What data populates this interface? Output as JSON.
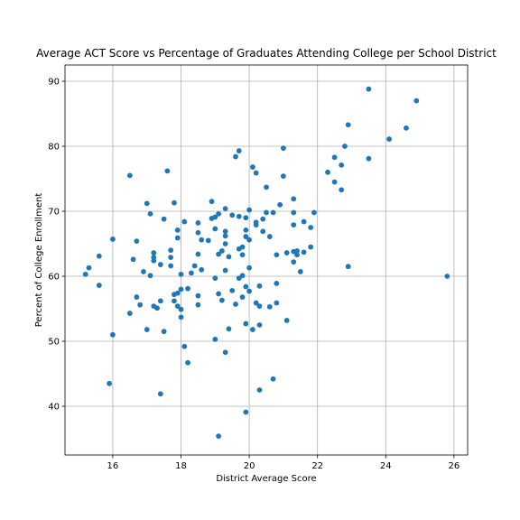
{
  "chart_data": {
    "type": "scatter",
    "title": "Average ACT Score vs Percentage of Graduates Attending College per School District",
    "xlabel": "District Average Score",
    "ylabel": "Percent of College Enrollment",
    "xlim": [
      14.6,
      26.4
    ],
    "ylim": [
      32.5,
      92.5
    ],
    "xticks": [
      16,
      18,
      20,
      22,
      24,
      26
    ],
    "yticks": [
      40,
      50,
      60,
      70,
      80,
      90
    ],
    "grid": true,
    "color": "#1f77b4",
    "points": [
      [
        15.2,
        60.3
      ],
      [
        15.3,
        61.3
      ],
      [
        15.6,
        63.1
      ],
      [
        15.6,
        58.6
      ],
      [
        15.9,
        43.5
      ],
      [
        16.0,
        65.7
      ],
      [
        16.0,
        51.0
      ],
      [
        16.5,
        54.3
      ],
      [
        16.5,
        75.5
      ],
      [
        16.6,
        62.6
      ],
      [
        16.7,
        65.4
      ],
      [
        16.7,
        56.8
      ],
      [
        16.8,
        55.6
      ],
      [
        16.9,
        60.7
      ],
      [
        17.0,
        71.2
      ],
      [
        17.0,
        51.8
      ],
      [
        17.1,
        69.6
      ],
      [
        17.1,
        60.1
      ],
      [
        17.2,
        62.4
      ],
      [
        17.2,
        63.6
      ],
      [
        17.2,
        62.9
      ],
      [
        17.2,
        55.4
      ],
      [
        17.3,
        55.1
      ],
      [
        17.4,
        41.9
      ],
      [
        17.4,
        61.8
      ],
      [
        17.4,
        56.2
      ],
      [
        17.5,
        51.5
      ],
      [
        17.5,
        68.8
      ],
      [
        17.6,
        76.2
      ],
      [
        17.7,
        64.0
      ],
      [
        17.7,
        62.9
      ],
      [
        17.7,
        61.6
      ],
      [
        17.8,
        71.3
      ],
      [
        17.8,
        56.2
      ],
      [
        17.8,
        57.2
      ],
      [
        17.9,
        67.1
      ],
      [
        17.9,
        65.9
      ],
      [
        17.9,
        57.4
      ],
      [
        17.9,
        55.4
      ],
      [
        18.0,
        60.3
      ],
      [
        18.0,
        58.0
      ],
      [
        18.0,
        53.7
      ],
      [
        18.0,
        54.9
      ],
      [
        18.1,
        68.4
      ],
      [
        18.1,
        49.2
      ],
      [
        18.2,
        46.7
      ],
      [
        18.2,
        58.1
      ],
      [
        18.3,
        60.5
      ],
      [
        18.4,
        61.6
      ],
      [
        18.5,
        68.2
      ],
      [
        18.5,
        66.7
      ],
      [
        18.5,
        63.4
      ],
      [
        18.5,
        57.0
      ],
      [
        18.5,
        55.6
      ],
      [
        18.6,
        65.6
      ],
      [
        18.6,
        61.0
      ],
      [
        18.8,
        65.5
      ],
      [
        18.9,
        71.5
      ],
      [
        18.9,
        68.9
      ],
      [
        19.0,
        69.1
      ],
      [
        19.0,
        67.3
      ],
      [
        19.0,
        59.7
      ],
      [
        19.0,
        50.3
      ],
      [
        19.1,
        69.6
      ],
      [
        19.1,
        63.4
      ],
      [
        19.1,
        57.3
      ],
      [
        19.1,
        35.4
      ],
      [
        19.2,
        63.9
      ],
      [
        19.2,
        56.3
      ],
      [
        19.3,
        70.4
      ],
      [
        19.3,
        66.9
      ],
      [
        19.3,
        66.2
      ],
      [
        19.3,
        65.0
      ],
      [
        19.3,
        60.9
      ],
      [
        19.3,
        48.3
      ],
      [
        19.4,
        63.0
      ],
      [
        19.4,
        51.9
      ],
      [
        19.5,
        69.4
      ],
      [
        19.5,
        57.8
      ],
      [
        19.6,
        78.4
      ],
      [
        19.6,
        55.7
      ],
      [
        19.7,
        79.3
      ],
      [
        19.7,
        69.2
      ],
      [
        19.7,
        64.2
      ],
      [
        19.7,
        59.7
      ],
      [
        19.8,
        64.5
      ],
      [
        19.8,
        63.3
      ],
      [
        19.8,
        60.1
      ],
      [
        19.8,
        56.8
      ],
      [
        19.9,
        69.0
      ],
      [
        19.9,
        67.1
      ],
      [
        19.9,
        66.1
      ],
      [
        19.9,
        58.4
      ],
      [
        19.9,
        52.7
      ],
      [
        19.9,
        39.1
      ],
      [
        20.0,
        70.2
      ],
      [
        20.0,
        65.6
      ],
      [
        20.0,
        61.3
      ],
      [
        20.0,
        57.7
      ],
      [
        20.1,
        76.8
      ],
      [
        20.1,
        51.8
      ],
      [
        20.2,
        75.9
      ],
      [
        20.2,
        68.3
      ],
      [
        20.2,
        67.9
      ],
      [
        20.2,
        55.9
      ],
      [
        20.3,
        58.5
      ],
      [
        20.3,
        55.4
      ],
      [
        20.3,
        52.5
      ],
      [
        20.3,
        42.5
      ],
      [
        20.4,
        68.8
      ],
      [
        20.4,
        66.9
      ],
      [
        20.5,
        73.7
      ],
      [
        20.5,
        69.8
      ],
      [
        20.6,
        66.1
      ],
      [
        20.6,
        55.3
      ],
      [
        20.7,
        69.8
      ],
      [
        20.7,
        44.2
      ],
      [
        20.8,
        63.3
      ],
      [
        20.8,
        58.9
      ],
      [
        20.8,
        55.9
      ],
      [
        20.9,
        71.0
      ],
      [
        21.0,
        79.7
      ],
      [
        21.0,
        75.4
      ],
      [
        21.1,
        63.6
      ],
      [
        21.1,
        53.2
      ],
      [
        21.3,
        71.9
      ],
      [
        21.3,
        69.8
      ],
      [
        21.3,
        67.9
      ],
      [
        21.3,
        63.8
      ],
      [
        21.3,
        62.2
      ],
      [
        21.4,
        63.9
      ],
      [
        21.4,
        63.3
      ],
      [
        21.5,
        60.7
      ],
      [
        21.6,
        68.4
      ],
      [
        21.6,
        63.7
      ],
      [
        21.8,
        67.5
      ],
      [
        21.8,
        64.5
      ],
      [
        21.9,
        69.8
      ],
      [
        22.3,
        76.0
      ],
      [
        22.5,
        78.3
      ],
      [
        22.5,
        74.5
      ],
      [
        22.7,
        77.1
      ],
      [
        22.7,
        73.3
      ],
      [
        22.8,
        80.0
      ],
      [
        22.9,
        83.3
      ],
      [
        22.9,
        61.5
      ],
      [
        23.5,
        88.8
      ],
      [
        23.5,
        78.1
      ],
      [
        24.1,
        81.1
      ],
      [
        24.6,
        82.8
      ],
      [
        24.9,
        87.0
      ],
      [
        25.8,
        60.0
      ]
    ]
  }
}
